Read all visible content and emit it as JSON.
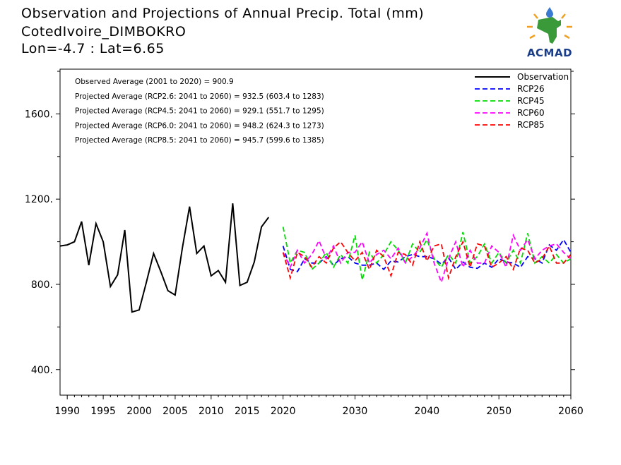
{
  "title_lines": [
    "Observation and Projections of Annual Precip. Total (mm)",
    "CotedIvoire_DIMBOKRO",
    "Lon=-4.7 : Lat=6.65"
  ],
  "logo": {
    "text": "ACMAD",
    "icon": "africa-continent-sun-logo-icon",
    "colors": {
      "africa": "#3a9a3a",
      "sun": "#f0a020",
      "text": "#1a3d8a",
      "drop": "#3a7ad0"
    }
  },
  "chart_data": {
    "type": "line",
    "xlim": [
      1989,
      2060
    ],
    "ylim": [
      280,
      1810
    ],
    "x_ticks": [
      1990,
      1995,
      2000,
      2005,
      2010,
      2015,
      2020,
      2030,
      2040,
      2050,
      2060
    ],
    "y_ticks": [
      400,
      800,
      1200,
      1600
    ],
    "y_tick_labels": [
      "400.",
      "800.",
      "1200.",
      "1600."
    ],
    "annotations": [
      "Observed Average (2001 to 2020) = 900.9",
      "Projected Average (RCP2.6: 2041 to 2060) = 932.5 (603.4 to 1283)",
      "Projected Average (RCP4.5: 2041 to 2060) = 929.1 (551.7 to 1295)",
      "Projected Average (RCP6.0: 2041 to 2060) = 948.2 (624.3 to 1273)",
      "Projected Average (RCP8.5: 2041 to 2060) = 945.7 (599.6 to 1385)"
    ],
    "legend_position": "top-right",
    "series": [
      {
        "name": "Observation",
        "color": "#000000",
        "dash": "solid",
        "x": [
          1989,
          1990,
          1991,
          1992,
          1993,
          1994,
          1995,
          1996,
          1997,
          1998,
          1999,
          2000,
          2001,
          2002,
          2003,
          2004,
          2005,
          2006,
          2007,
          2008,
          2009,
          2010,
          2011,
          2012,
          2013,
          2014,
          2015,
          2016,
          2017,
          2018,
          2019,
          2020
        ],
        "values": [
          980,
          985,
          1000,
          1095,
          890,
          1085,
          1000,
          790,
          845,
          1055,
          670,
          680,
          810,
          945,
          860,
          770,
          750,
          970,
          1165,
          945,
          980,
          840,
          865,
          810,
          1180,
          795,
          810,
          905,
          1070,
          1115,
          null,
          null
        ]
      },
      {
        "name": "RCP26",
        "color": "#0000ff",
        "dash": "dashed",
        "x": [
          2020,
          2021,
          2022,
          2023,
          2024,
          2025,
          2026,
          2027,
          2028,
          2029,
          2030,
          2031,
          2032,
          2033,
          2034,
          2035,
          2036,
          2037,
          2038,
          2039,
          2040,
          2041,
          2042,
          2043,
          2044,
          2045,
          2046,
          2047,
          2048,
          2049,
          2050,
          2051,
          2052,
          2053,
          2054,
          2055,
          2056,
          2057,
          2058,
          2059,
          2060
        ],
        "values": [
          980,
          870,
          860,
          920,
          900,
          900,
          930,
          890,
          920,
          930,
          900,
          890,
          890,
          900,
          870,
          910,
          905,
          930,
          940,
          930,
          930,
          920,
          895,
          925,
          870,
          905,
          880,
          875,
          900,
          880,
          920,
          905,
          900,
          880,
          930,
          920,
          900,
          985,
          960,
          1010,
          950
        ]
      },
      {
        "name": "RCP45",
        "color": "#00dd00",
        "dash": "dashed",
        "x": [
          2020,
          2021,
          2022,
          2023,
          2024,
          2025,
          2026,
          2027,
          2028,
          2029,
          2030,
          2031,
          2032,
          2033,
          2034,
          2035,
          2036,
          2037,
          2038,
          2039,
          2040,
          2041,
          2042,
          2043,
          2044,
          2045,
          2046,
          2047,
          2048,
          2049,
          2050,
          2051,
          2052,
          2053,
          2054,
          2055,
          2056,
          2057,
          2058,
          2059,
          2060
        ],
        "values": [
          1070,
          900,
          960,
          950,
          870,
          900,
          950,
          880,
          940,
          900,
          1030,
          820,
          950,
          900,
          940,
          1000,
          960,
          900,
          990,
          950,
          1010,
          920,
          880,
          940,
          900,
          1045,
          900,
          930,
          990,
          900,
          950,
          900,
          960,
          900,
          1040,
          900,
          930,
          900,
          940,
          900,
          920
        ]
      },
      {
        "name": "RCP60",
        "color": "#ff00ff",
        "dash": "dashed",
        "x": [
          2020,
          2021,
          2022,
          2023,
          2024,
          2025,
          2026,
          2027,
          2028,
          2029,
          2030,
          2031,
          2032,
          2033,
          2034,
          2035,
          2036,
          2037,
          2038,
          2039,
          2040,
          2041,
          2042,
          2043,
          2044,
          2045,
          2046,
          2047,
          2048,
          2049,
          2050,
          2051,
          2052,
          2053,
          2054,
          2055,
          2056,
          2057,
          2058,
          2059,
          2060
        ],
        "values": [
          950,
          880,
          960,
          900,
          940,
          1005,
          920,
          980,
          900,
          950,
          950,
          1000,
          900,
          940,
          960,
          920,
          970,
          900,
          930,
          970,
          1040,
          900,
          810,
          920,
          1000,
          880,
          960,
          900,
          900,
          980,
          950,
          880,
          1030,
          960,
          1010,
          920,
          960,
          980,
          990,
          950,
          920
        ]
      },
      {
        "name": "RCP85",
        "color": "#ff0000",
        "dash": "dashed",
        "x": [
          2020,
          2021,
          2022,
          2023,
          2024,
          2025,
          2026,
          2027,
          2028,
          2029,
          2030,
          2031,
          2032,
          2033,
          2034,
          2035,
          2036,
          2037,
          2038,
          2039,
          2040,
          2041,
          2042,
          2043,
          2044,
          2045,
          2046,
          2047,
          2048,
          2049,
          2050,
          2051,
          2052,
          2053,
          2054,
          2055,
          2056,
          2057,
          2058,
          2059,
          2060
        ],
        "values": [
          950,
          830,
          950,
          930,
          880,
          930,
          900,
          970,
          1000,
          950,
          910,
          950,
          870,
          960,
          930,
          840,
          950,
          940,
          890,
          1000,
          910,
          980,
          990,
          830,
          930,
          1000,
          880,
          990,
          980,
          880,
          900,
          930,
          870,
          970,
          960,
          900,
          920,
          980,
          900,
          900,
          940
        ]
      }
    ]
  }
}
